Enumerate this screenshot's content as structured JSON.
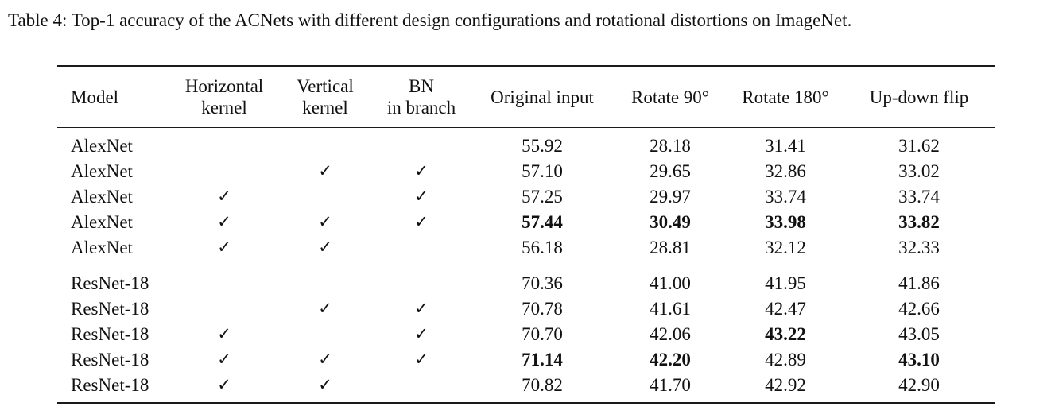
{
  "caption": "Table 4: Top-1 accuracy of the ACNets with different design configurations and rotational distortions on ImageNet.",
  "headers": {
    "model": "Model",
    "horizontal_line1": "Horizontal",
    "horizontal_line2": "kernel",
    "vertical_line1": "Vertical",
    "vertical_line2": "kernel",
    "bn_line1": "BN",
    "bn_line2": "in branch",
    "original": "Original input",
    "rot90": "Rotate 90°",
    "rot180": "Rotate 180°",
    "flip": "Up-down flip"
  },
  "check_symbol": "✓",
  "groups": [
    {
      "rows": [
        {
          "model": "AlexNet",
          "horizontal": false,
          "vertical": false,
          "bn": false,
          "original": "55.92",
          "rot90": "28.18",
          "rot180": "31.41",
          "flip": "31.62",
          "bold": []
        },
        {
          "model": "AlexNet",
          "horizontal": false,
          "vertical": true,
          "bn": true,
          "original": "57.10",
          "rot90": "29.65",
          "rot180": "32.86",
          "flip": "33.02",
          "bold": []
        },
        {
          "model": "AlexNet",
          "horizontal": true,
          "vertical": false,
          "bn": true,
          "original": "57.25",
          "rot90": "29.97",
          "rot180": "33.74",
          "flip": "33.74",
          "bold": []
        },
        {
          "model": "AlexNet",
          "horizontal": true,
          "vertical": true,
          "bn": true,
          "original": "57.44",
          "rot90": "30.49",
          "rot180": "33.98",
          "flip": "33.82",
          "bold": [
            "original",
            "rot90",
            "rot180",
            "flip"
          ]
        },
        {
          "model": "AlexNet",
          "horizontal": true,
          "vertical": true,
          "bn": false,
          "original": "56.18",
          "rot90": "28.81",
          "rot180": "32.12",
          "flip": "32.33",
          "bold": []
        }
      ]
    },
    {
      "rows": [
        {
          "model": "ResNet-18",
          "horizontal": false,
          "vertical": false,
          "bn": false,
          "original": "70.36",
          "rot90": "41.00",
          "rot180": "41.95",
          "flip": "41.86",
          "bold": []
        },
        {
          "model": "ResNet-18",
          "horizontal": false,
          "vertical": true,
          "bn": true,
          "original": "70.78",
          "rot90": "41.61",
          "rot180": "42.47",
          "flip": "42.66",
          "bold": []
        },
        {
          "model": "ResNet-18",
          "horizontal": true,
          "vertical": false,
          "bn": true,
          "original": "70.70",
          "rot90": "42.06",
          "rot180": "43.22",
          "flip": "43.05",
          "bold": [
            "rot180"
          ]
        },
        {
          "model": "ResNet-18",
          "horizontal": true,
          "vertical": true,
          "bn": true,
          "original": "71.14",
          "rot90": "42.20",
          "rot180": "42.89",
          "flip": "43.10",
          "bold": [
            "original",
            "rot90",
            "flip"
          ]
        },
        {
          "model": "ResNet-18",
          "horizontal": true,
          "vertical": true,
          "bn": false,
          "original": "70.82",
          "rot90": "41.70",
          "rot180": "42.92",
          "flip": "42.90",
          "bold": []
        }
      ]
    }
  ]
}
